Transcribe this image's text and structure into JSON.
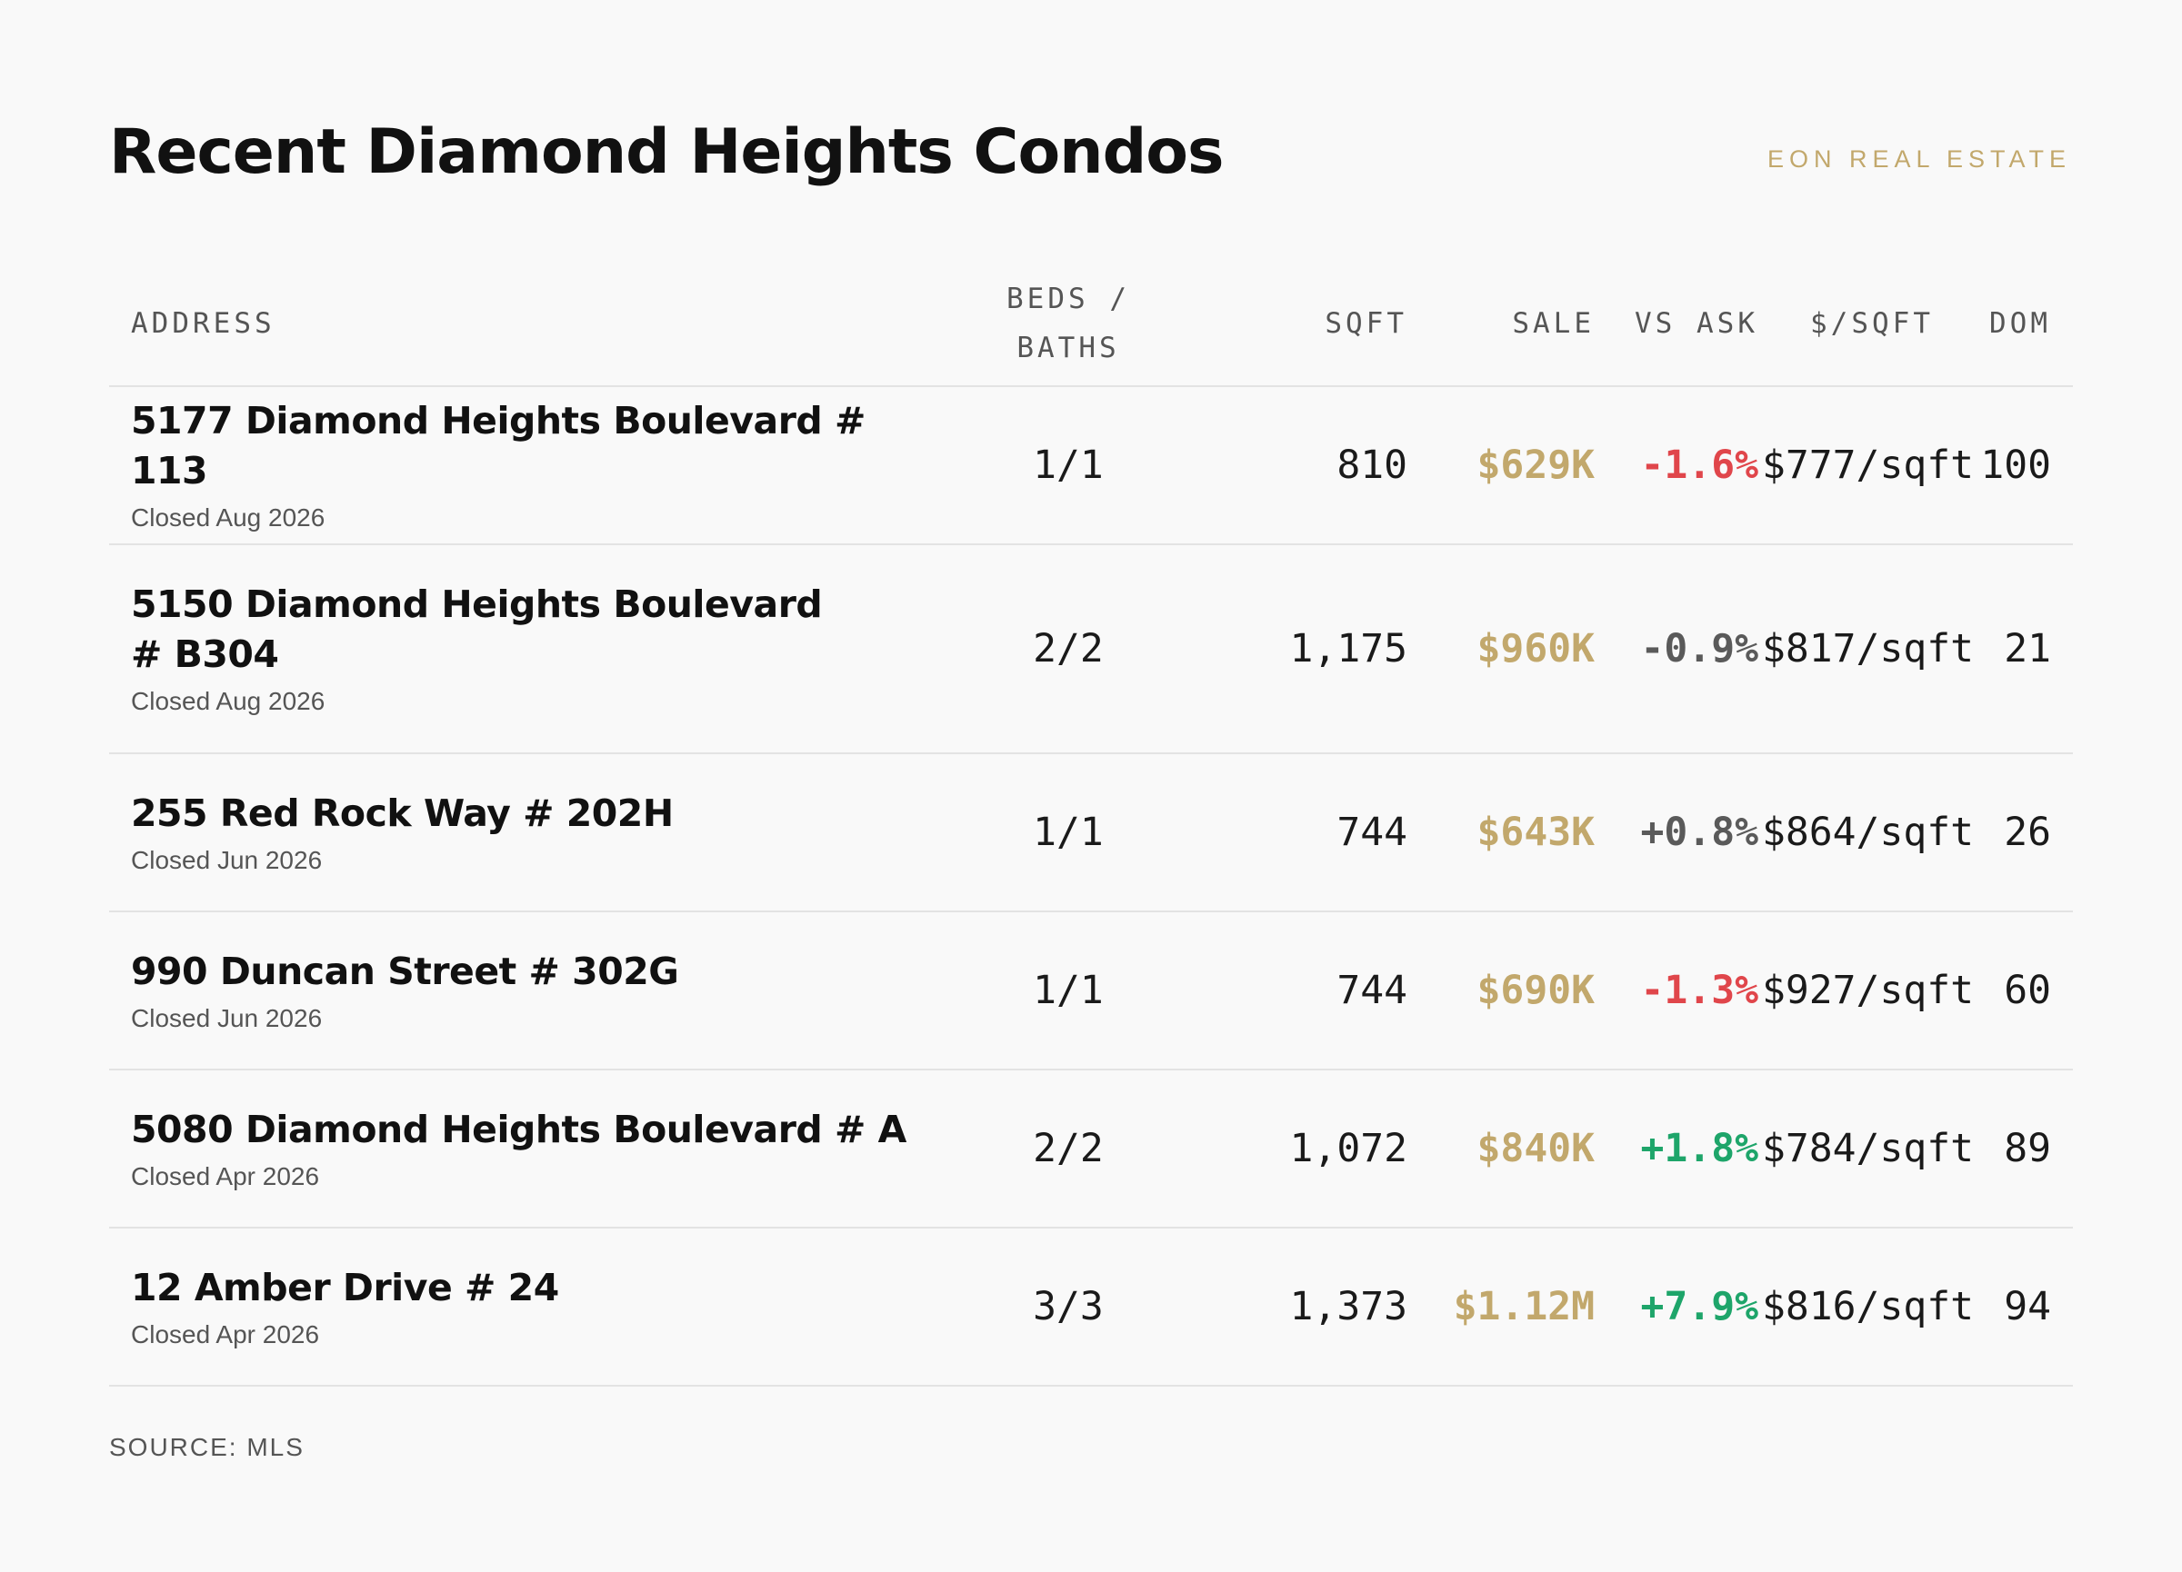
{
  "header": {
    "title": "Recent Diamond Heights Condos",
    "brand": "EON REAL ESTATE"
  },
  "table": {
    "columns": {
      "address": "ADDRESS",
      "beds_baths_line1": "BEDS /",
      "beds_baths_line2": "BATHS",
      "sqft": "SQFT",
      "sale": "SALE",
      "vs_ask": "VS ASK",
      "price_per_sqft": "$/SQFT",
      "dom": "DOM"
    },
    "rows": [
      {
        "address": "5177 Diamond Heights Boulevard # 113",
        "closed": "Closed Aug 2026",
        "beds_baths": "1/1",
        "sqft": "810",
        "sale": "$629K",
        "vs_ask": "-1.6%",
        "vs_ask_status": "negative",
        "price_per_sqft": "$777/sqft",
        "dom": "100"
      },
      {
        "address": "5150 Diamond Heights Boulevard # B304",
        "closed": "Closed Aug 2026",
        "beds_baths": "2/2",
        "sqft": "1,175",
        "sale": "$960K",
        "vs_ask": "-0.9%",
        "vs_ask_status": "neutral",
        "price_per_sqft": "$817/sqft",
        "dom": "21"
      },
      {
        "address": "255 Red Rock Way # 202H",
        "closed": "Closed Jun 2026",
        "beds_baths": "1/1",
        "sqft": "744",
        "sale": "$643K",
        "vs_ask": "+0.8%",
        "vs_ask_status": "neutral",
        "price_per_sqft": "$864/sqft",
        "dom": "26"
      },
      {
        "address": "990 Duncan Street # 302G",
        "closed": "Closed Jun 2026",
        "beds_baths": "1/1",
        "sqft": "744",
        "sale": "$690K",
        "vs_ask": "-1.3%",
        "vs_ask_status": "negative",
        "price_per_sqft": "$927/sqft",
        "dom": "60"
      },
      {
        "address": "5080 Diamond Heights Boulevard # A",
        "closed": "Closed Apr 2026",
        "beds_baths": "2/2",
        "sqft": "1,072",
        "sale": "$840K",
        "vs_ask": "+1.8%",
        "vs_ask_status": "positive",
        "price_per_sqft": "$784/sqft",
        "dom": "89"
      },
      {
        "address": "12 Amber Drive # 24",
        "closed": "Closed Apr 2026",
        "beds_baths": "3/3",
        "sqft": "1,373",
        "sale": "$1.12M",
        "vs_ask": "+7.9%",
        "vs_ask_status": "positive",
        "price_per_sqft": "$816/sqft",
        "dom": "94"
      }
    ]
  },
  "footer": {
    "source": "SOURCE: MLS"
  },
  "colors": {
    "accent_gold": "#c2a86c",
    "negative_red": "#e0464b",
    "positive_green": "#1ea56a",
    "neutral_gray": "#5a5a5a"
  }
}
